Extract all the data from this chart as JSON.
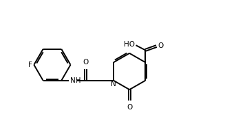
{
  "bg_color": "#ffffff",
  "line_color": "#000000",
  "line_width": 1.4,
  "font_size": 7.5,
  "fig_width": 3.27,
  "fig_height": 1.96,
  "dpi": 100,
  "xlim": [
    0,
    10
  ],
  "ylim": [
    0,
    6
  ]
}
